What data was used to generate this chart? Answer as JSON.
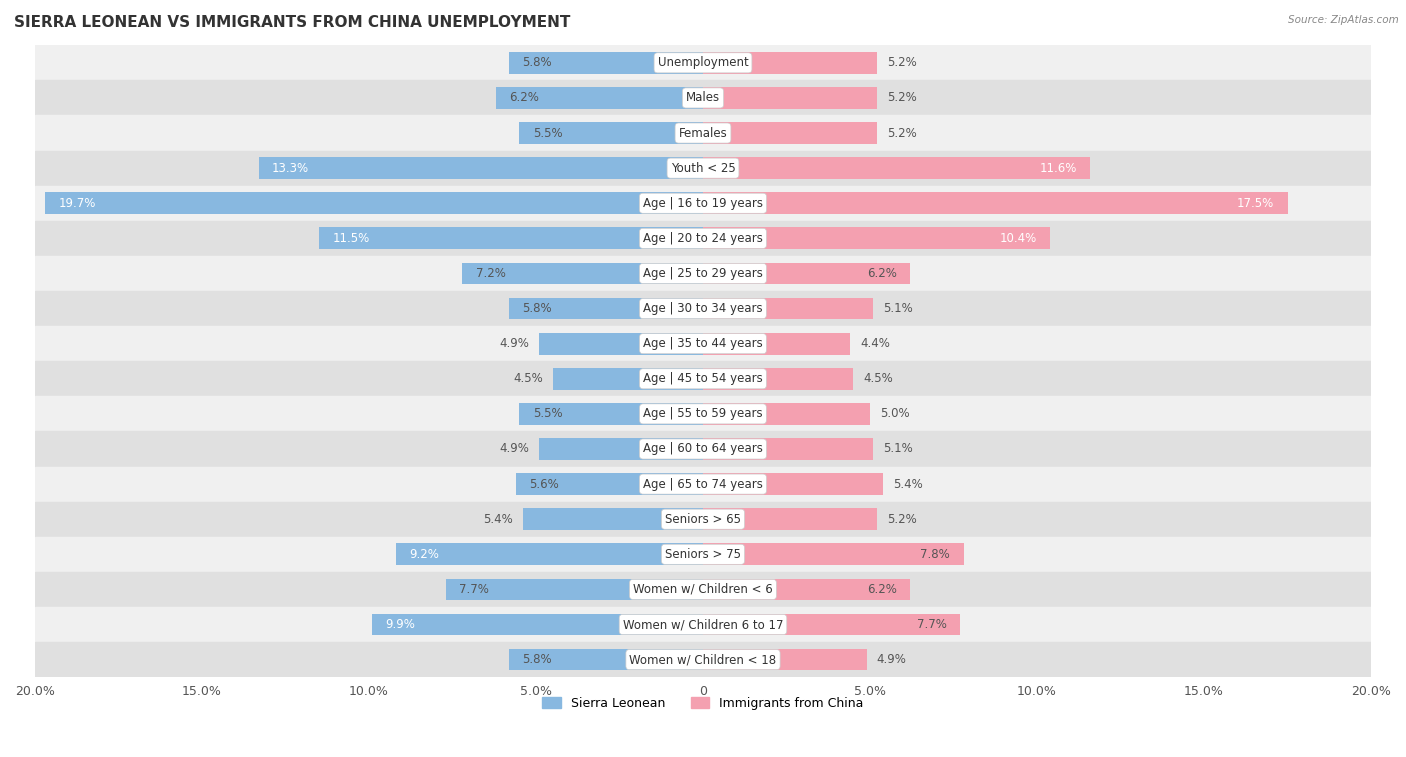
{
  "title": "SIERRA LEONEAN VS IMMIGRANTS FROM CHINA UNEMPLOYMENT",
  "source": "Source: ZipAtlas.com",
  "categories": [
    "Unemployment",
    "Males",
    "Females",
    "Youth < 25",
    "Age | 16 to 19 years",
    "Age | 20 to 24 years",
    "Age | 25 to 29 years",
    "Age | 30 to 34 years",
    "Age | 35 to 44 years",
    "Age | 45 to 54 years",
    "Age | 55 to 59 years",
    "Age | 60 to 64 years",
    "Age | 65 to 74 years",
    "Seniors > 65",
    "Seniors > 75",
    "Women w/ Children < 6",
    "Women w/ Children 6 to 17",
    "Women w/ Children < 18"
  ],
  "sierra_leone": [
    5.8,
    6.2,
    5.5,
    13.3,
    19.7,
    11.5,
    7.2,
    5.8,
    4.9,
    4.5,
    5.5,
    4.9,
    5.6,
    5.4,
    9.2,
    7.7,
    9.9,
    5.8
  ],
  "china": [
    5.2,
    5.2,
    5.2,
    11.6,
    17.5,
    10.4,
    6.2,
    5.1,
    4.4,
    4.5,
    5.0,
    5.1,
    5.4,
    5.2,
    7.8,
    6.2,
    7.7,
    4.9
  ],
  "sierra_leone_color": "#88b8e0",
  "china_color": "#f4a0b0",
  "xlim": 20.0,
  "bg_colors": [
    "#f0f0f0",
    "#e0e0e0"
  ],
  "title_fontsize": 11,
  "label_fontsize": 8.5,
  "val_fontsize": 8.5,
  "legend_labels": [
    "Sierra Leonean",
    "Immigrants from China"
  ],
  "tick_positions": [
    -20,
    -15,
    -10,
    -5,
    0,
    5,
    10,
    15,
    20
  ],
  "tick_labels": [
    "20.0%",
    "15.0%",
    "10.0%",
    "5.0%",
    "0",
    "5.0%",
    "10.0%",
    "15.0%",
    "20.0%"
  ]
}
